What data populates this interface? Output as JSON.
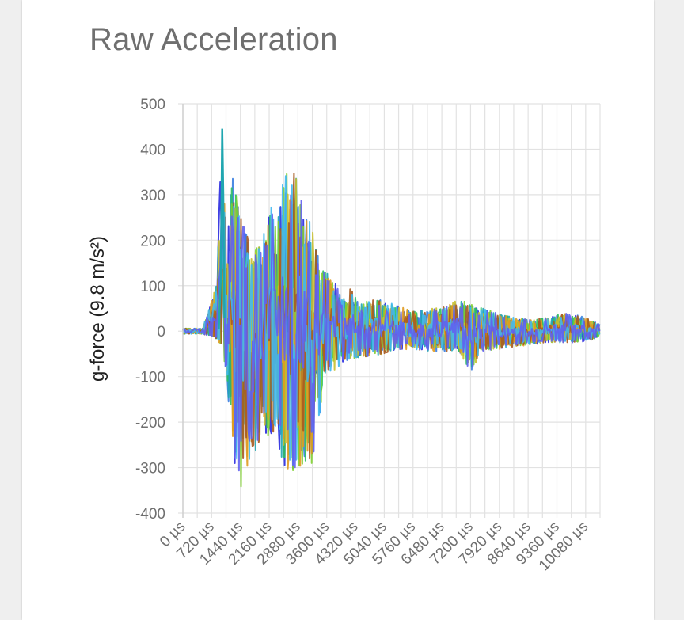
{
  "card": {
    "title": "Raw Acceleration"
  },
  "chart_data": {
    "type": "line",
    "title": "Raw Acceleration",
    "xlabel": "",
    "ylabel": "g-force (9.8 m/s²)",
    "xlim": [
      0,
      10440
    ],
    "ylim": [
      -400,
      500
    ],
    "grid": true,
    "legend": "none",
    "x_ticks": [
      "0 µs",
      "720 µs",
      "1440 µs",
      "2160 µs",
      "2880 µs",
      "3600 µs",
      "4320 µs",
      "5040 µs",
      "5760 µs",
      "6480 µs",
      "7200 µs",
      "7920 µs",
      "8640 µs",
      "9360 µs",
      "10080 µs"
    ],
    "y_ticks": [
      "500",
      "400",
      "300",
      "200",
      "100",
      "0",
      "-100",
      "-200",
      "-300",
      "-400"
    ],
    "series_colors": [
      "#2a2ae0",
      "#3a7ee0",
      "#1fa6b0",
      "#2cc060",
      "#80d030",
      "#c8c030",
      "#e09a20",
      "#a65a20",
      "#40b8f0",
      "#6060f0"
    ],
    "envelope": {
      "x": [
        0,
        500,
        700,
        850,
        980,
        1100,
        1250,
        1450,
        1600,
        1800,
        2000,
        2150,
        2300,
        2500,
        2700,
        2900,
        3050,
        3200,
        3400,
        3600,
        3800,
        4000,
        4200,
        4400,
        4700,
        5000,
        5400,
        5800,
        6200,
        6600,
        6900,
        7200,
        7500,
        7900,
        8300,
        8700,
        9100,
        9500,
        9900,
        10200,
        10440
      ],
      "upper": [
        5,
        8,
        60,
        110,
        445,
        180,
        370,
        250,
        220,
        180,
        210,
        300,
        240,
        340,
        360,
        330,
        270,
        250,
        170,
        130,
        110,
        70,
        95,
        60,
        70,
        70,
        55,
        45,
        50,
        55,
        70,
        60,
        50,
        40,
        30,
        25,
        30,
        40,
        35,
        25,
        15
      ],
      "lower": [
        -10,
        -8,
        -10,
        -20,
        -30,
        -120,
        -290,
        -350,
        -300,
        -290,
        -200,
        -250,
        -220,
        -290,
        -320,
        -300,
        -290,
        -310,
        -200,
        -90,
        -90,
        -70,
        -60,
        -60,
        -55,
        -50,
        -40,
        -40,
        -45,
        -45,
        -45,
        -90,
        -45,
        -40,
        -35,
        -30,
        -25,
        -25,
        -25,
        -20,
        -10
      ]
    }
  }
}
